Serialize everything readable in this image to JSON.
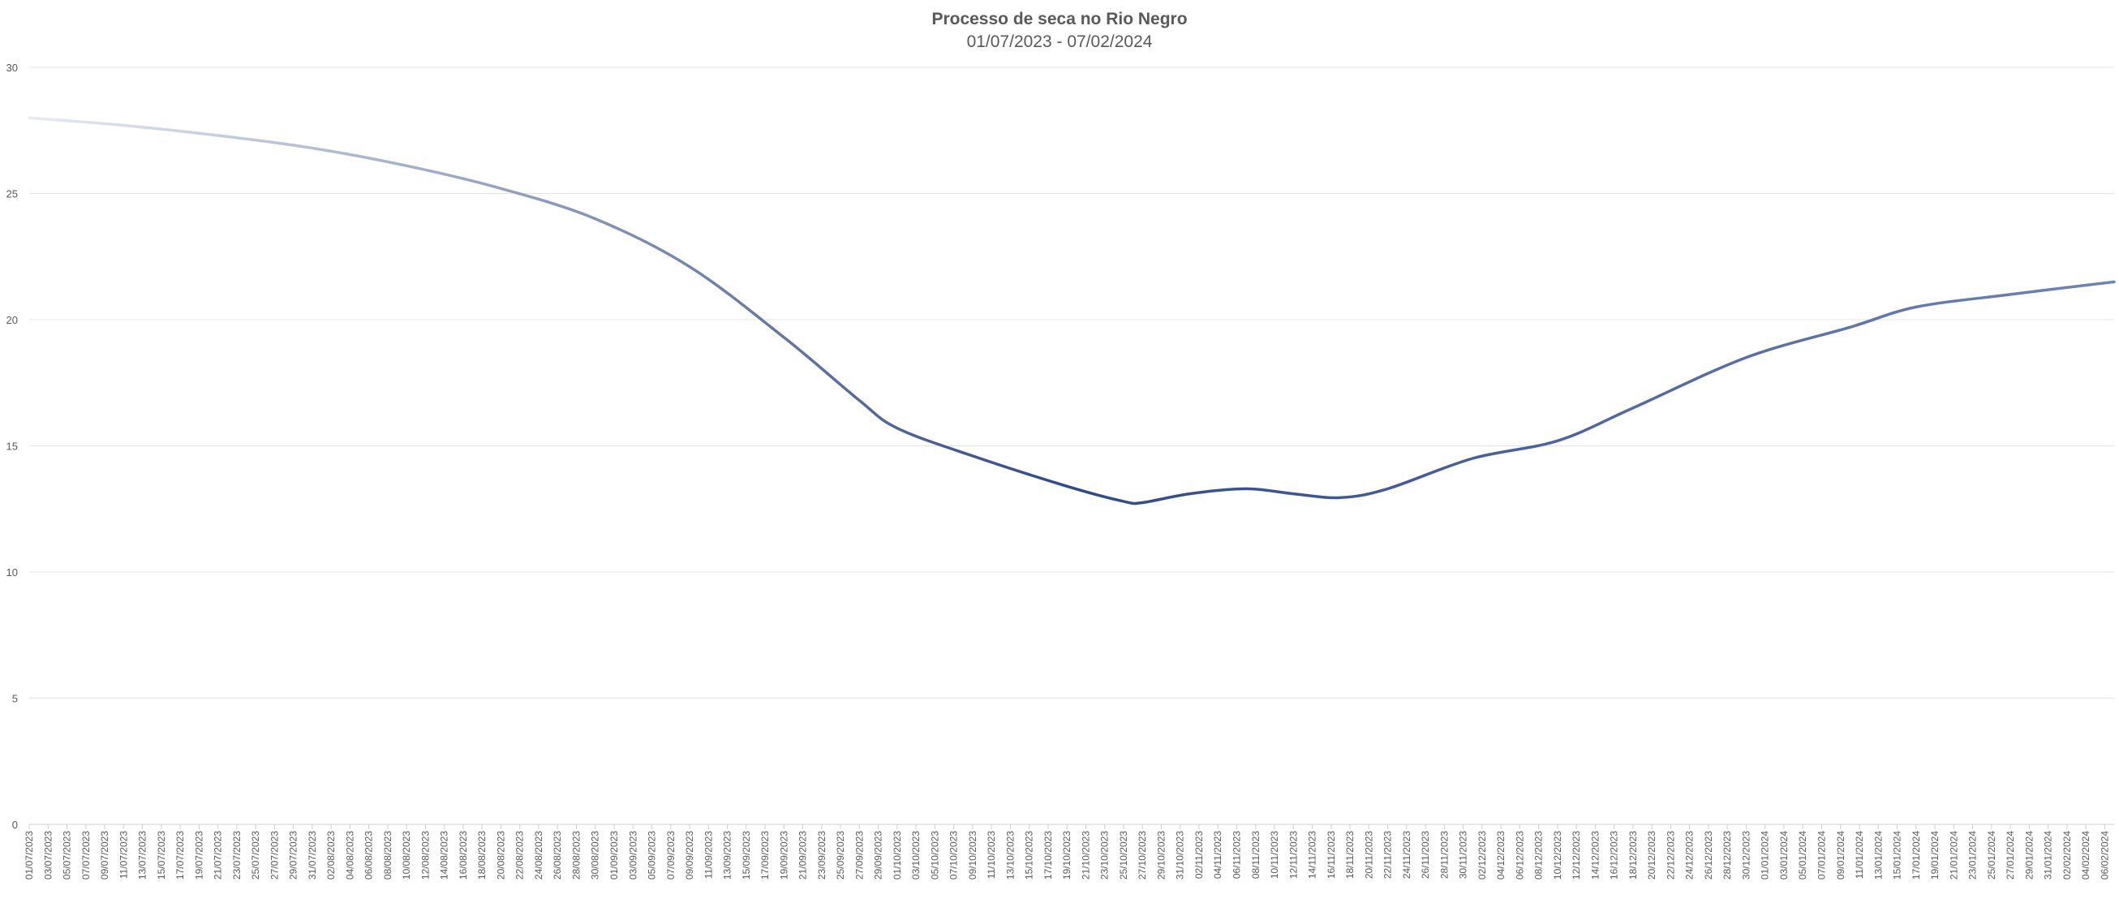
{
  "chart_data": {
    "type": "line",
    "title": "Processo de seca no Rio Negro",
    "subtitle": "01/07/2023 - 07/02/2024",
    "xlabel": "",
    "ylabel": "",
    "ylim": [
      0,
      30
    ],
    "yticks": [
      0,
      5,
      10,
      15,
      20,
      25,
      30
    ],
    "grid": true,
    "legend": "none",
    "start_date": "2023-07-01",
    "end_date": "2024-02-07",
    "x_tick_labels": [
      "01/07/2023",
      "03/07/2023",
      "05/07/2023",
      "07/07/2023",
      "09/07/2023",
      "11/07/2023",
      "13/07/2023",
      "15/07/2023",
      "17/07/2023",
      "19/07/2023",
      "21/07/2023",
      "23/07/2023",
      "25/07/2023",
      "27/07/2023",
      "29/07/2023",
      "31/07/2023",
      "02/08/2023",
      "04/08/2023",
      "06/08/2023",
      "08/08/2023",
      "10/08/2023",
      "12/08/2023",
      "14/08/2023",
      "16/08/2023",
      "18/08/2023",
      "20/08/2023",
      "22/08/2023",
      "24/08/2023",
      "26/08/2023",
      "28/08/2023",
      "30/08/2023",
      "01/09/2023",
      "03/09/2023",
      "05/09/2023",
      "07/09/2023",
      "09/09/2023",
      "11/09/2023",
      "13/09/2023",
      "15/09/2023",
      "17/09/2023",
      "19/09/2023",
      "21/09/2023",
      "23/09/2023",
      "25/09/2023",
      "27/09/2023",
      "29/09/2023",
      "01/10/2023",
      "03/10/2023",
      "05/10/2023",
      "07/10/2023",
      "09/10/2023",
      "11/10/2023",
      "13/10/2023",
      "15/10/2023",
      "17/10/2023",
      "19/10/2023",
      "21/10/2023",
      "23/10/2023",
      "25/10/2023",
      "27/10/2023",
      "29/10/2023",
      "31/10/2023",
      "02/11/2023",
      "04/11/2023",
      "06/11/2023",
      "08/11/2023",
      "10/11/2023",
      "12/11/2023",
      "14/11/2023",
      "16/11/2023",
      "18/11/2023",
      "20/11/2023",
      "22/11/2023",
      "24/11/2023",
      "26/11/2023",
      "28/11/2023",
      "30/11/2023",
      "02/12/2023",
      "04/12/2023",
      "06/12/2023",
      "08/12/2023",
      "10/12/2023",
      "12/12/2023",
      "14/12/2023",
      "16/12/2023",
      "18/12/2023",
      "20/12/2023",
      "22/12/2023",
      "24/12/2023",
      "26/12/2023",
      "28/12/2023",
      "30/12/2023",
      "01/01/2024",
      "03/01/2024",
      "05/01/2024",
      "07/01/2024",
      "09/01/2024",
      "11/01/2024",
      "13/01/2024",
      "15/01/2024",
      "17/01/2024",
      "19/01/2024",
      "21/01/2024",
      "23/01/2024",
      "25/01/2024",
      "27/01/2024",
      "29/01/2024",
      "31/01/2024",
      "02/02/2024",
      "04/02/2024",
      "06/02/2024"
    ],
    "series": [
      {
        "name": "",
        "colors": [
          "#E6EAF4",
          "#2F4A88",
          "#6F84B6"
        ],
        "points": [
          [
            "01/07/2023",
            28.0
          ],
          [
            "11/07/2023",
            27.7
          ],
          [
            "21/07/2023",
            27.3
          ],
          [
            "31/07/2023",
            26.8
          ],
          [
            "10/08/2023",
            26.1
          ],
          [
            "20/08/2023",
            25.2
          ],
          [
            "30/08/2023",
            24.0
          ],
          [
            "09/09/2023",
            22.1
          ],
          [
            "19/09/2023",
            19.3
          ],
          [
            "27/09/2023",
            16.8
          ],
          [
            "01/10/2023",
            15.7
          ],
          [
            "09/10/2023",
            14.6
          ],
          [
            "19/10/2023",
            13.4
          ],
          [
            "25/10/2023",
            12.8
          ],
          [
            "27/10/2023",
            12.75
          ],
          [
            "01/11/2023",
            13.1
          ],
          [
            "07/11/2023",
            13.3
          ],
          [
            "12/11/2023",
            13.1
          ],
          [
            "17/11/2023",
            12.95
          ],
          [
            "22/11/2023",
            13.3
          ],
          [
            "01/12/2023",
            14.5
          ],
          [
            "10/12/2023",
            15.2
          ],
          [
            "18/12/2023",
            16.5
          ],
          [
            "30/12/2023",
            18.5
          ],
          [
            "10/01/2024",
            19.7
          ],
          [
            "17/01/2024",
            20.5
          ],
          [
            "27/01/2024",
            21.0
          ],
          [
            "07/02/2024",
            21.5
          ]
        ]
      }
    ]
  }
}
